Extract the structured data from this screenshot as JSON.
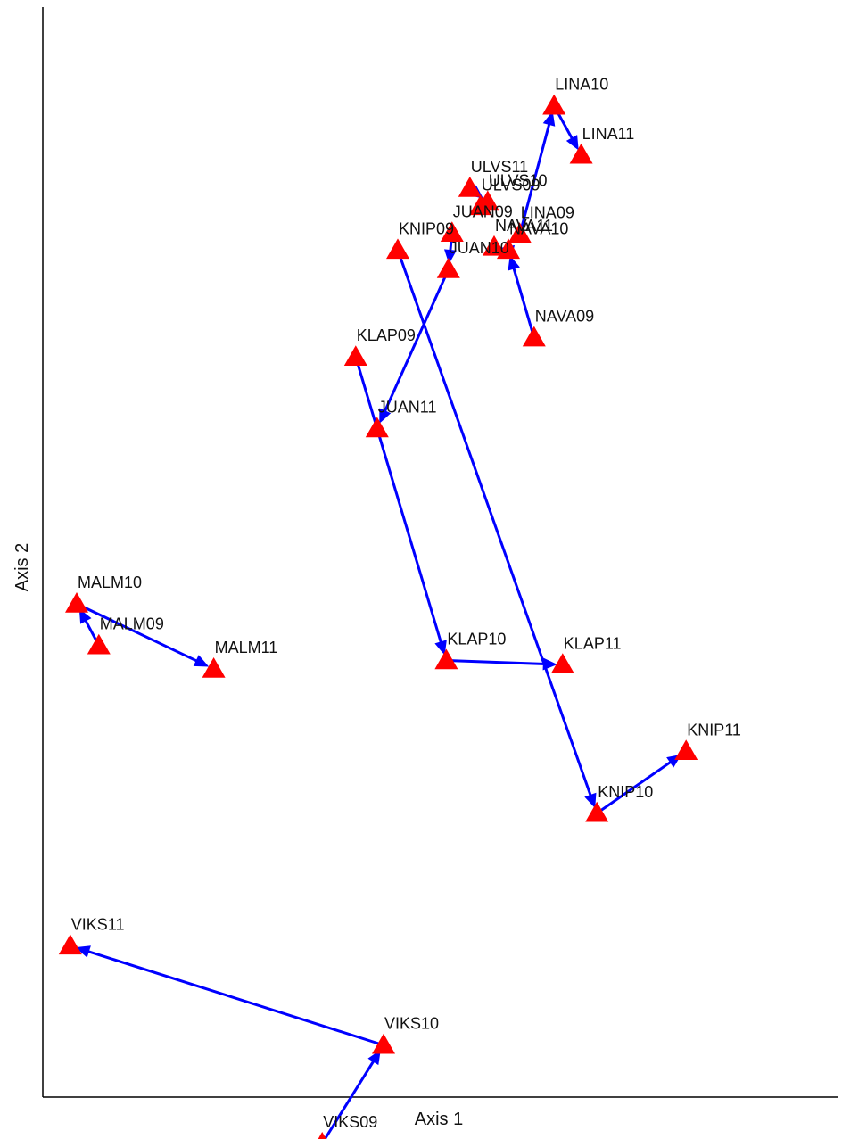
{
  "chart_data": {
    "type": "scatter",
    "xlabel": "Axis 1",
    "ylabel": "Axis 2",
    "xlim": [
      0,
      100
    ],
    "ylim": [
      0,
      100
    ],
    "marker_color": "#ff0000",
    "arrow_color": "#0000ff",
    "points": [
      {
        "label": "LINA10",
        "x": 70.4,
        "y": 95.1
      },
      {
        "label": "LINA11",
        "x": 74.2,
        "y": 90.5
      },
      {
        "label": "ULVS11",
        "x": 58.6,
        "y": 87.4
      },
      {
        "label": "ULVS10",
        "x": 61.1,
        "y": 86.1
      },
      {
        "label": "ULVS09",
        "x": 60.1,
        "y": 85.7
      },
      {
        "label": "JUAN09",
        "x": 56.1,
        "y": 83.2
      },
      {
        "label": "LINA09",
        "x": 65.6,
        "y": 83.1
      },
      {
        "label": "NAVA11",
        "x": 62.0,
        "y": 81.9
      },
      {
        "label": "NAVA10",
        "x": 64.0,
        "y": 81.6
      },
      {
        "label": "JUAN10",
        "x": 55.6,
        "y": 79.8
      },
      {
        "label": "KNIP09",
        "x": 48.5,
        "y": 81.6
      },
      {
        "label": "NAVA09",
        "x": 67.6,
        "y": 73.4
      },
      {
        "label": "KLAP09",
        "x": 42.6,
        "y": 71.6
      },
      {
        "label": "JUAN11",
        "x": 45.6,
        "y": 64.9
      },
      {
        "label": "MALM10",
        "x": 3.5,
        "y": 48.5
      },
      {
        "label": "MALM09",
        "x": 6.6,
        "y": 44.6
      },
      {
        "label": "MALM11",
        "x": 22.7,
        "y": 42.4
      },
      {
        "label": "KLAP10",
        "x": 55.3,
        "y": 43.2
      },
      {
        "label": "KLAP11",
        "x": 71.6,
        "y": 42.8
      },
      {
        "label": "KNIP11",
        "x": 88.9,
        "y": 34.7
      },
      {
        "label": "KNIP10",
        "x": 76.4,
        "y": 28.9
      },
      {
        "label": "VIKS11",
        "x": 2.6,
        "y": 16.5
      },
      {
        "label": "VIKS10",
        "x": 46.5,
        "y": 7.2
      },
      {
        "label": "VIKS09",
        "x": 37.9,
        "y": -2.0
      }
    ],
    "trajectories": [
      [
        "LINA09",
        "LINA10",
        "LINA11"
      ],
      [
        "ULVS11",
        "ULVS10"
      ],
      [
        "NAVA09",
        "NAVA10",
        "NAVA11"
      ],
      [
        "JUAN09",
        "JUAN10",
        "JUAN11"
      ],
      [
        "KNIP09",
        "KNIP10",
        "KNIP11"
      ],
      [
        "KLAP09",
        "KLAP10",
        "KLAP11"
      ],
      [
        "MALM09",
        "MALM10",
        "MALM11"
      ],
      [
        "VIKS09",
        "VIKS10",
        "VIKS11"
      ]
    ]
  }
}
